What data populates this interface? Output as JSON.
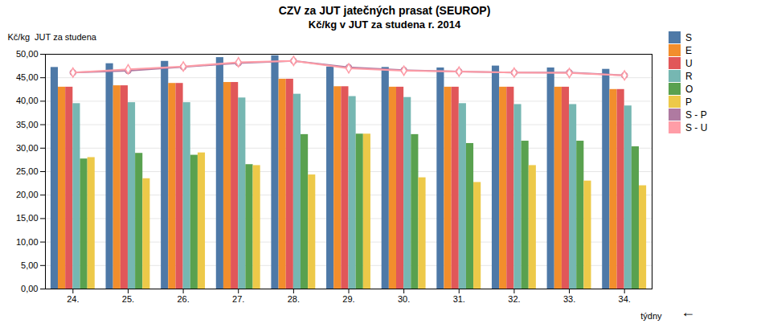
{
  "chart_data": {
    "type": "bar",
    "title": "CZV za JUT jatečných prasat (SEUROP)",
    "subtitle": "Kč/kg v JUT za studena r. 2014",
    "xlabel": "týdny",
    "ylabel": "Kč/kg  JUT za studena",
    "categories": [
      "24.",
      "25.",
      "26.",
      "27.",
      "28.",
      "29.",
      "30.",
      "31.",
      "32.",
      "33.",
      "34."
    ],
    "series": [
      {
        "name": "S",
        "values": [
          47.2,
          48.0,
          48.5,
          49.3,
          49.7,
          47.3,
          47.2,
          47.1,
          47.5,
          47.1,
          46.8
        ]
      },
      {
        "name": "E",
        "values": [
          43.0,
          43.3,
          43.8,
          44.0,
          44.7,
          43.1,
          43.0,
          43.0,
          43.0,
          43.0,
          42.5
        ]
      },
      {
        "name": "U",
        "values": [
          43.0,
          43.3,
          43.8,
          44.0,
          44.7,
          43.1,
          43.0,
          43.0,
          43.0,
          43.0,
          42.5
        ]
      },
      {
        "name": "R",
        "values": [
          39.5,
          39.7,
          39.7,
          40.7,
          41.5,
          41.0,
          40.8,
          39.5,
          39.3,
          39.3,
          39.0
        ]
      },
      {
        "name": "O",
        "values": [
          27.7,
          28.9,
          28.5,
          26.5,
          32.9,
          33.0,
          32.9,
          31.0,
          31.5,
          31.5,
          30.3
        ]
      },
      {
        "name": "P",
        "values": [
          28.0,
          23.5,
          29.0,
          26.3,
          24.3,
          33.0,
          23.7,
          22.7,
          26.3,
          23.0,
          22.0
        ]
      },
      {
        "name": "S - P",
        "type": "line",
        "marker": "circle",
        "values": [
          46.1,
          46.5,
          47.3,
          48.1,
          48.6,
          47.2,
          46.6,
          46.3,
          46.1,
          46.1,
          45.5
        ]
      },
      {
        "name": "S - U",
        "type": "line",
        "marker": "diamond",
        "values": [
          46.1,
          46.8,
          47.4,
          48.3,
          48.6,
          47.0,
          46.5,
          46.3,
          46.1,
          46.0,
          45.5
        ]
      }
    ],
    "ylim": [
      0,
      50
    ],
    "yticks": [
      {
        "value": 0,
        "label": "0,00"
      },
      {
        "value": 5,
        "label": "5,00"
      },
      {
        "value": 10,
        "label": "10,00"
      },
      {
        "value": 15,
        "label": "15,00"
      },
      {
        "value": 20,
        "label": "20,00"
      },
      {
        "value": 25,
        "label": "25,00"
      },
      {
        "value": 30,
        "label": "30,00"
      },
      {
        "value": 35,
        "label": "35,00"
      },
      {
        "value": 40,
        "label": "40,00"
      },
      {
        "value": 45,
        "label": "45,00"
      },
      {
        "value": 50,
        "label": "50,00"
      }
    ],
    "grid": true,
    "legend": "right",
    "annotations": [
      "←"
    ]
  }
}
